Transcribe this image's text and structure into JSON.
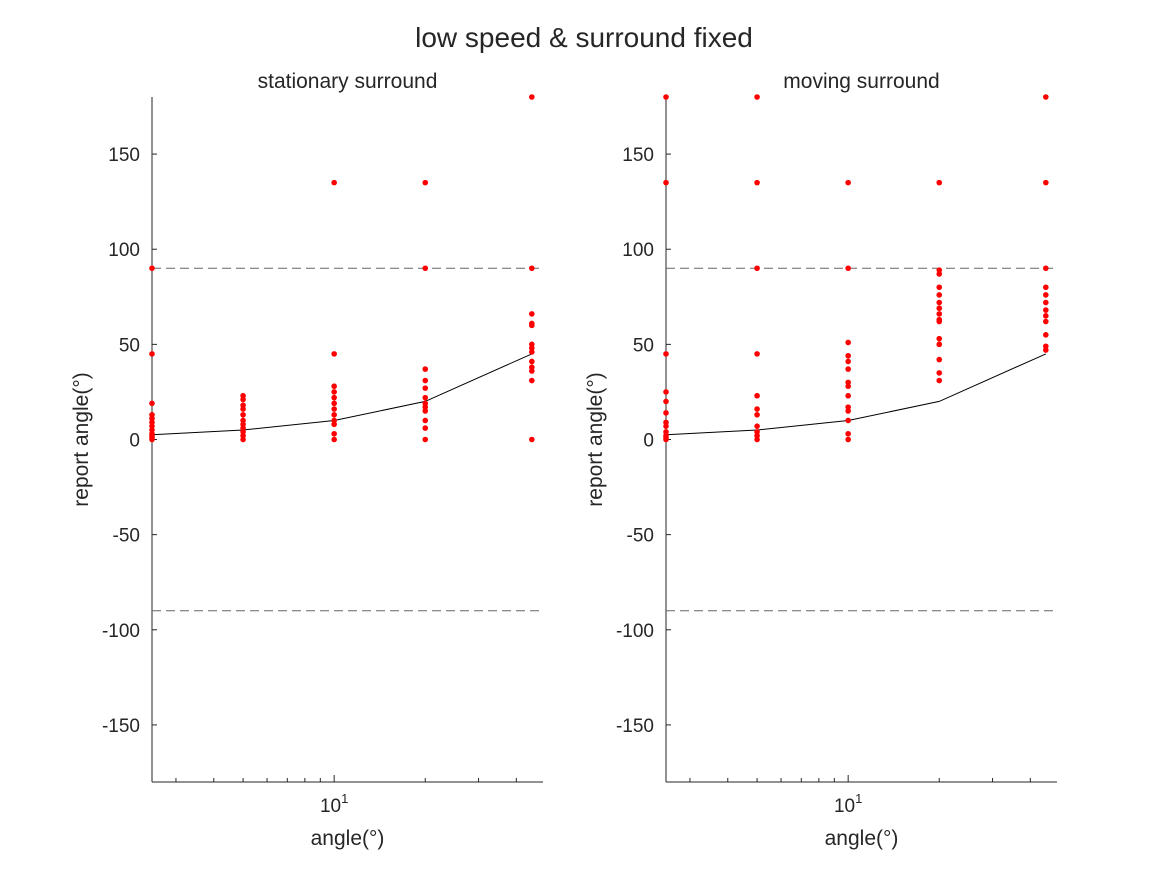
{
  "figure": {
    "title": "low speed & surround fixed"
  },
  "colors": {
    "points": "#ff0000",
    "line": "#000000",
    "reference_lines": "#666666",
    "axis": "#262626",
    "background": "#ffffff"
  },
  "chart_data": [
    {
      "type": "scatter",
      "title": "stationary surround",
      "xlabel": "angle(°)",
      "ylabel": "report angle(°)",
      "x_scale": "log",
      "xlim": [
        2.5,
        49
      ],
      "ylim": [
        -180,
        180
      ],
      "y_ticks": [
        -150,
        -100,
        -50,
        0,
        50,
        100,
        150
      ],
      "x_ticks": [
        10
      ],
      "x_tick_labels": [
        {
          "base": "10",
          "exp": "1"
        }
      ],
      "reference_lines": [
        90,
        -90
      ],
      "mean_line": {
        "x": [
          2.5,
          5,
          10,
          20,
          45
        ],
        "y": [
          2.5,
          5,
          10,
          20,
          45
        ]
      },
      "points": [
        {
          "x": 2.5,
          "y": [
            0,
            1,
            2,
            3,
            5,
            7,
            9,
            11,
            13,
            19,
            45,
            90
          ]
        },
        {
          "x": 5,
          "y": [
            0,
            2,
            4,
            6,
            8,
            10,
            13,
            16,
            18,
            21,
            23
          ]
        },
        {
          "x": 10,
          "y": [
            0,
            3,
            8,
            10,
            13,
            16,
            19,
            22,
            25,
            28,
            45,
            135
          ]
        },
        {
          "x": 20,
          "y": [
            0,
            6,
            10,
            15,
            17,
            19,
            22,
            27,
            31,
            37,
            90,
            135
          ]
        },
        {
          "x": 45,
          "y": [
            0,
            31,
            36,
            38,
            41,
            46,
            48,
            50,
            60,
            61,
            66,
            90,
            180
          ]
        }
      ]
    },
    {
      "type": "scatter",
      "title": "moving surround",
      "xlabel": "angle(°)",
      "ylabel": "report angle(°)",
      "x_scale": "log",
      "xlim": [
        2.5,
        49
      ],
      "ylim": [
        -180,
        180
      ],
      "y_ticks": [
        -150,
        -100,
        -50,
        0,
        50,
        100,
        150
      ],
      "x_ticks": [
        10
      ],
      "x_tick_labels": [
        {
          "base": "10",
          "exp": "1"
        }
      ],
      "reference_lines": [
        90,
        -90
      ],
      "mean_line": {
        "x": [
          2.5,
          5,
          10,
          20,
          45
        ],
        "y": [
          2.5,
          5,
          10,
          20,
          45
        ]
      },
      "points": [
        {
          "x": 2.5,
          "y": [
            0,
            1,
            2,
            4,
            7,
            9,
            14,
            20,
            25,
            45,
            135,
            180
          ]
        },
        {
          "x": 5,
          "y": [
            0,
            2,
            4,
            7,
            13,
            16,
            23,
            45,
            90,
            135,
            180
          ]
        },
        {
          "x": 10,
          "y": [
            0,
            3,
            10,
            15,
            17,
            23,
            28,
            30,
            37,
            41,
            44,
            51,
            90,
            135
          ]
        },
        {
          "x": 20,
          "y": [
            31,
            35,
            42,
            50,
            53,
            62,
            63,
            66,
            69,
            72,
            76,
            80,
            87,
            89,
            135
          ]
        },
        {
          "x": 45,
          "y": [
            47,
            49,
            55,
            62,
            65,
            68,
            72,
            76,
            80,
            90,
            135,
            180
          ]
        }
      ]
    }
  ]
}
